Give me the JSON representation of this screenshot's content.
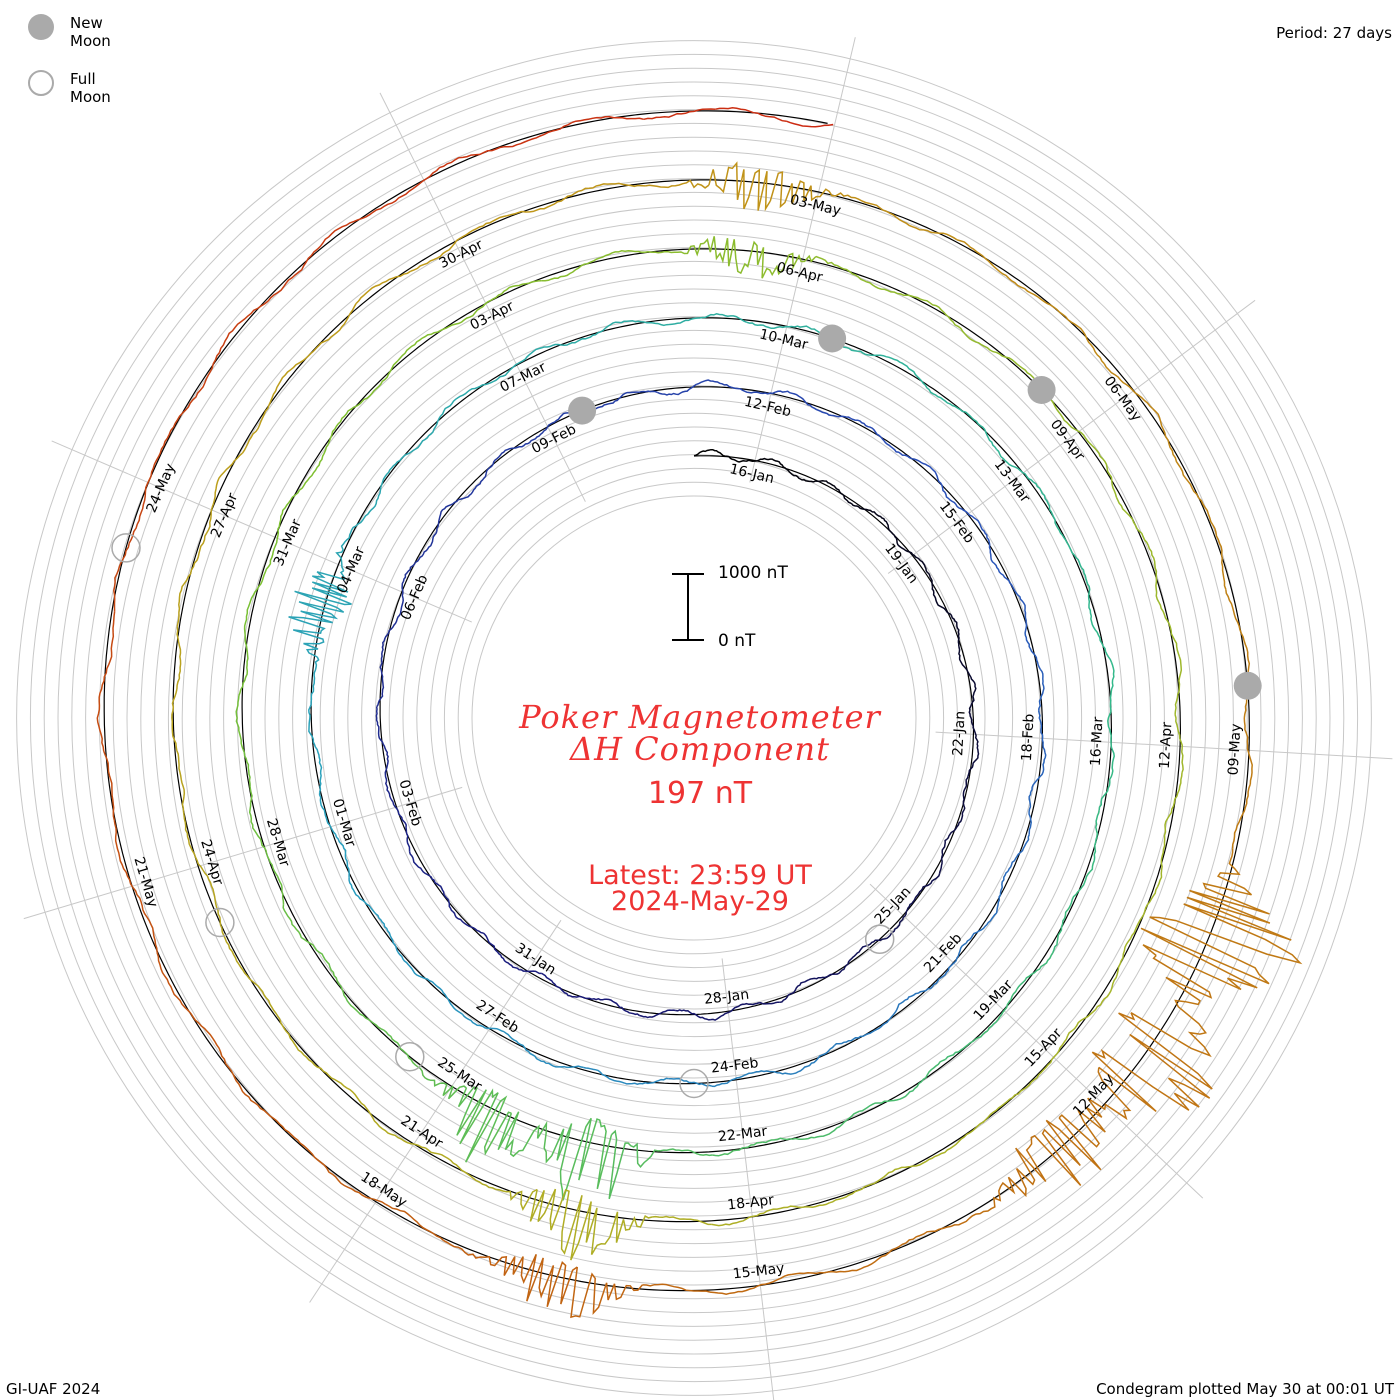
{
  "header": {
    "period_label": "Period: 27 days"
  },
  "legend": {
    "new_moon_label": "New Moon",
    "full_moon_label": "Full Moon",
    "new_moon_color": "#aaaaaa",
    "full_moon_color": "#aaaaaa"
  },
  "footer": {
    "credit": "GI-UAF 2024",
    "plotted": "Condegram plotted May 30 at 00:01 UT"
  },
  "center": {
    "title_line1": "Poker Magnetometer",
    "title_line2": "ΔH Component",
    "value": "197 nT",
    "latest_line1": "Latest: 23:59 UT",
    "latest_line2": "2024-May-29",
    "text_color": "#ee3333"
  },
  "scale_bar": {
    "top_label": "1000 nT",
    "bottom_label": "0 nT"
  },
  "chart_data": {
    "type": "line",
    "polar": true,
    "period_days": 27,
    "start_date": "2024-01-15",
    "end_date": "2024-05-29",
    "scale_nT": 1000,
    "grid": true,
    "color_gradient": [
      "#000000",
      "#1a1a7a",
      "#2a4fb8",
      "#2a9fbf",
      "#33b98a",
      "#7cc032",
      "#a9b52a",
      "#c09a1a",
      "#c06a12",
      "#cc2a12"
    ],
    "date_labels": [
      "16-Jan",
      "19-Jan",
      "22-Jan",
      "25-Jan",
      "28-Jan",
      "31-Jan",
      "03-Feb",
      "06-Feb",
      "09-Feb",
      "12-Feb",
      "15-Feb",
      "18-Feb",
      "21-Feb",
      "24-Feb",
      "27-Feb",
      "01-Mar",
      "04-Mar",
      "07-Mar",
      "10-Mar",
      "13-Mar",
      "16-Mar",
      "19-Mar",
      "22-Mar",
      "25-Mar",
      "28-Mar",
      "31-Mar",
      "03-Apr",
      "06-Apr",
      "09-Apr",
      "12-Apr",
      "15-Apr",
      "18-Apr",
      "21-Apr",
      "24-Apr",
      "27-Apr",
      "30-Apr",
      "03-May",
      "06-May",
      "09-May",
      "12-May",
      "15-May",
      "18-May",
      "21-May",
      "24-May"
    ],
    "new_moons": [
      "2024-02-09",
      "2024-03-10",
      "2024-04-08",
      "2024-05-08"
    ],
    "full_moons": [
      "2024-01-25",
      "2024-02-24",
      "2024-03-25",
      "2024-04-23",
      "2024-05-23"
    ],
    "disturbances": [
      {
        "date": "2024-03-03",
        "min_nT": -400,
        "max_nT": 600
      },
      {
        "date": "2024-03-23",
        "min_nT": -400,
        "max_nT": 1100
      },
      {
        "date": "2024-03-24",
        "min_nT": -300,
        "max_nT": 900
      },
      {
        "date": "2024-04-05",
        "min_nT": -400,
        "max_nT": 300
      },
      {
        "date": "2024-04-19",
        "min_nT": -300,
        "max_nT": 800
      },
      {
        "date": "2024-05-02",
        "min_nT": -500,
        "max_nT": 300
      },
      {
        "date": "2024-05-10",
        "min_nT": -1200,
        "max_nT": 1500
      },
      {
        "date": "2024-05-11",
        "min_nT": -900,
        "max_nT": 1300
      },
      {
        "date": "2024-05-12",
        "min_nT": -500,
        "max_nT": 700
      },
      {
        "date": "2024-05-16",
        "min_nT": -300,
        "max_nT": 700
      }
    ]
  }
}
